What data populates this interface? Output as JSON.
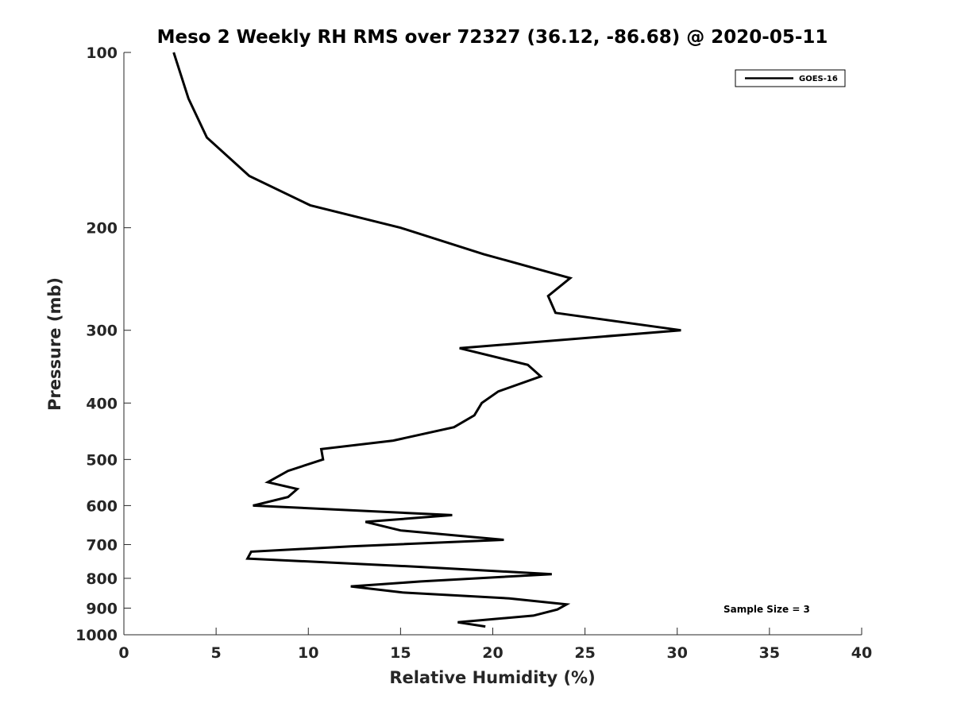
{
  "chart_data": {
    "type": "line",
    "title": "Meso 2 Weekly RH RMS over 72327 (36.12, -86.68) @ 2020-05-11",
    "xlabel": "Relative Humidity (%)",
    "ylabel": "Pressure (mb)",
    "xlim": [
      0,
      40
    ],
    "ylim": [
      100,
      1000
    ],
    "yscale": "log",
    "yreversed": true,
    "xticks": [
      0,
      5,
      10,
      15,
      20,
      25,
      30,
      35,
      40
    ],
    "xtick_labels": [
      "0",
      "5",
      "10",
      "15",
      "20",
      "25",
      "30",
      "35",
      "40"
    ],
    "yticks": [
      100,
      200,
      300,
      400,
      500,
      600,
      700,
      800,
      900,
      1000
    ],
    "ytick_labels": [
      "100",
      "200",
      "300",
      "400",
      "500",
      "600",
      "700",
      "800",
      "900",
      "1000"
    ],
    "grid": false,
    "legend_position": "top-right",
    "series": [
      {
        "name": "GOES-16",
        "color": "#000000",
        "points": [
          [
            2.7,
            100
          ],
          [
            3.5,
            120
          ],
          [
            4.5,
            140
          ],
          [
            6.8,
            163
          ],
          [
            10.1,
            183
          ],
          [
            15.0,
            200
          ],
          [
            19.5,
            222
          ],
          [
            24.2,
            244
          ],
          [
            23.0,
            262
          ],
          [
            23.4,
            280
          ],
          [
            30.2,
            300
          ],
          [
            18.2,
            322
          ],
          [
            21.9,
            344
          ],
          [
            22.6,
            360
          ],
          [
            20.3,
            382
          ],
          [
            19.4,
            400
          ],
          [
            19.0,
            420
          ],
          [
            17.9,
            440
          ],
          [
            14.6,
            464
          ],
          [
            10.7,
            480
          ],
          [
            10.8,
            500
          ],
          [
            8.9,
            523
          ],
          [
            7.8,
            547
          ],
          [
            9.4,
            562
          ],
          [
            8.9,
            580
          ],
          [
            7.0,
            600
          ],
          [
            17.8,
            623
          ],
          [
            13.1,
            640
          ],
          [
            15.0,
            662
          ],
          [
            20.6,
            687
          ],
          [
            12.3,
            705
          ],
          [
            6.9,
            720
          ],
          [
            6.7,
            740
          ],
          [
            16.2,
            765
          ],
          [
            23.2,
            787
          ],
          [
            16.1,
            810
          ],
          [
            12.3,
            826
          ],
          [
            15.1,
            846
          ],
          [
            20.9,
            866
          ],
          [
            24.0,
            887
          ],
          [
            23.5,
            905
          ],
          [
            22.2,
            927
          ],
          [
            18.1,
            952
          ],
          [
            19.6,
            968
          ]
        ]
      }
    ],
    "annotations": [
      "Sample Size = 3"
    ]
  }
}
